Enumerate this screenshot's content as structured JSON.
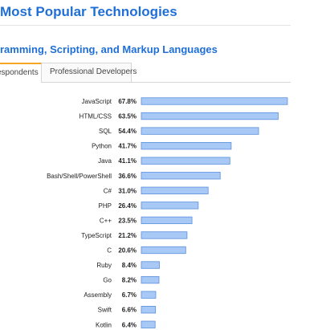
{
  "page": {
    "title": "Most Popular Technologies",
    "section_title": "ramming, Scripting, and Markup Languages"
  },
  "tabs": [
    {
      "label": "espondents",
      "active": true
    },
    {
      "label": "Professional Developers",
      "active": false
    }
  ],
  "colors": {
    "heading": "#1f6fd6",
    "bar_fill": "#a8c8f5",
    "bar_stroke": "#5b8fdc",
    "tab_accent": "#f5a623"
  },
  "chart_data": {
    "type": "bar",
    "orientation": "horizontal",
    "title": "",
    "xlabel": "",
    "ylabel": "",
    "grid": false,
    "xlim": [
      0,
      67.8
    ],
    "categories": [
      "JavaScript",
      "HTML/CSS",
      "SQL",
      "Python",
      "Java",
      "Bash/Shell/PowerShell",
      "C#",
      "PHP",
      "C++",
      "TypeScript",
      "C",
      "Ruby",
      "Go",
      "Assembly",
      "Swift",
      "Kotlin"
    ],
    "values": [
      67.8,
      63.5,
      54.4,
      41.7,
      41.1,
      36.6,
      31.0,
      26.4,
      23.5,
      21.2,
      20.6,
      8.4,
      8.2,
      6.7,
      6.6,
      6.4
    ],
    "value_labels": [
      "67.8%",
      "63.5%",
      "54.4%",
      "41.7%",
      "41.1%",
      "36.6%",
      "31.0%",
      "26.4%",
      "23.5%",
      "21.2%",
      "20.6%",
      "8.4%",
      "8.2%",
      "6.7%",
      "6.6%",
      "6.4%"
    ]
  }
}
